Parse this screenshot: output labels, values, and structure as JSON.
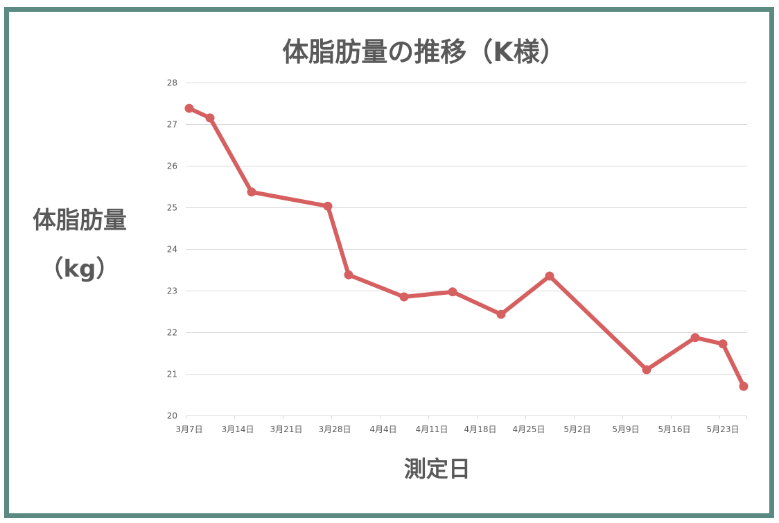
{
  "chart_data": {
    "type": "line",
    "title": "体脂肪量の推移（K様）",
    "xlabel": "測定日",
    "ylabel_lines": [
      "体脂肪量",
      "（kg）"
    ],
    "x": [
      "3月7日",
      "3月10日",
      "3月16日",
      "3月27日",
      "3月30日",
      "4月7日",
      "4月14日",
      "4月21日",
      "4月28日",
      "5月12日",
      "5月19日",
      "5月23日",
      "5月26日"
    ],
    "series": [
      {
        "values": [
          27.38,
          27.15,
          25.37,
          25.03,
          23.38,
          22.85,
          22.97,
          22.43,
          23.35,
          21.1,
          21.87,
          21.72,
          20.7
        ],
        "color": "#d65f5f",
        "marker": "circle"
      }
    ],
    "x_ticks": [
      "3月7日",
      "3月14日",
      "3月21日",
      "3月28日",
      "4月4日",
      "4月11日",
      "4月18日",
      "4月25日",
      "5月2日",
      "5月9日",
      "5月16日",
      "5月23日"
    ],
    "xlim": [
      "3月7日",
      "5月26日"
    ],
    "y_ticks": [
      20,
      21,
      22,
      23,
      24,
      25,
      26,
      27,
      28
    ],
    "ylim": [
      20,
      28
    ],
    "grid": {
      "horizontal": true,
      "vertical": false
    },
    "legend": "none"
  },
  "colors": {
    "frame": "#5b8a82",
    "text": "#595959",
    "grid": "#d9d9d9"
  }
}
